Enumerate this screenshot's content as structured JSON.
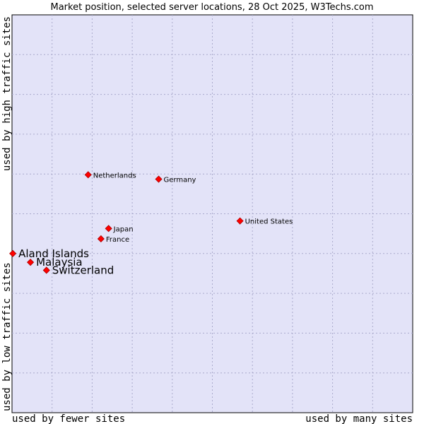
{
  "chart_data": {
    "type": "scatter",
    "title": "Market position, selected server locations, 28 Oct 2025, W3Techs.com",
    "xlabel_left": "used by fewer sites",
    "xlabel_right": "used by many sites",
    "ylabel_bottom": "used by low traffic sites",
    "ylabel_top": "used by high traffic sites",
    "xlim": [
      0,
      100
    ],
    "ylim": [
      0,
      100
    ],
    "grid": true,
    "colors": {
      "plot_bg": "#e3e3f8",
      "grid": "#aaaacc",
      "point": "#ff0000",
      "point_edge": "#aa0000"
    },
    "points": [
      {
        "label": "Netherlands",
        "x": 19.0,
        "y": 59.8,
        "emphasis": false
      },
      {
        "label": "Germany",
        "x": 36.6,
        "y": 58.7,
        "emphasis": false
      },
      {
        "label": "United States",
        "x": 56.9,
        "y": 48.2,
        "emphasis": false
      },
      {
        "label": "Japan",
        "x": 24.1,
        "y": 46.3,
        "emphasis": false
      },
      {
        "label": "France",
        "x": 22.2,
        "y": 43.7,
        "emphasis": false
      },
      {
        "label": "Aland Islands",
        "x": 0.2,
        "y": 40.0,
        "emphasis": true
      },
      {
        "label": "Malaysia",
        "x": 4.6,
        "y": 37.8,
        "emphasis": true
      },
      {
        "label": "Switzerland",
        "x": 8.6,
        "y": 35.8,
        "emphasis": true
      }
    ]
  }
}
